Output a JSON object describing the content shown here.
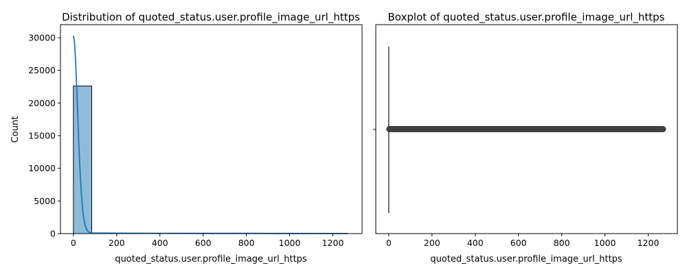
{
  "chart_data": [
    {
      "type": "histogram",
      "title": "Distribution of quoted_status.user.profile_image_url_https",
      "xlabel": "quoted_status.user.profile_image_url_https",
      "ylabel": "Count",
      "xlim": [
        -60,
        1335
      ],
      "ylim": [
        0,
        32000
      ],
      "xticks": [
        0,
        200,
        400,
        600,
        800,
        1000,
        1200
      ],
      "yticks": [
        0,
        5000,
        10000,
        15000,
        20000,
        25000,
        30000
      ],
      "bin_width": 84.6,
      "bin_starts": [
        0,
        84.6,
        169.2,
        253.8,
        338.4,
        423,
        507.6,
        592.2,
        676.8,
        761.4,
        846,
        930.6,
        1015.2,
        1099.8,
        1184.4
      ],
      "counts": [
        22600,
        70,
        45,
        35,
        30,
        28,
        25,
        22,
        20,
        18,
        15,
        12,
        10,
        8,
        5
      ],
      "kde": {
        "x": [
          0,
          5,
          10,
          15,
          20,
          25,
          30,
          35,
          40,
          45,
          50,
          55,
          60,
          65,
          70,
          75,
          80,
          90,
          100,
          150,
          200,
          300,
          400,
          600,
          800,
          1000,
          1200,
          1270
        ],
        "y": [
          30300,
          29300,
          26500,
          22500,
          18000,
          13700,
          10000,
          7000,
          4700,
          3000,
          1900,
          1150,
          700,
          420,
          260,
          170,
          120,
          90,
          80,
          70,
          60,
          50,
          45,
          35,
          28,
          20,
          12,
          8
        ]
      },
      "colors": {
        "bar_fill": "#1f77b4",
        "bar_edge": "#000000",
        "kde": "#1f77b4"
      }
    },
    {
      "type": "boxplot",
      "title": "Boxplot of quoted_status.user.profile_image_url_https",
      "xlabel": "quoted_status.user.profile_image_url_https",
      "ylabel": "",
      "xlim": [
        -60,
        1335
      ],
      "xticks": [
        0,
        200,
        400,
        600,
        800,
        1000,
        1200
      ],
      "median": 0,
      "q1": 0,
      "q3": 0,
      "whisker_low": 0,
      "whisker_high": 0,
      "outlier_range": [
        1,
        1270
      ],
      "colors": {
        "box": "#4c72b0",
        "line": "#3f3f3f",
        "flier": "#3f3f3f"
      }
    }
  ]
}
